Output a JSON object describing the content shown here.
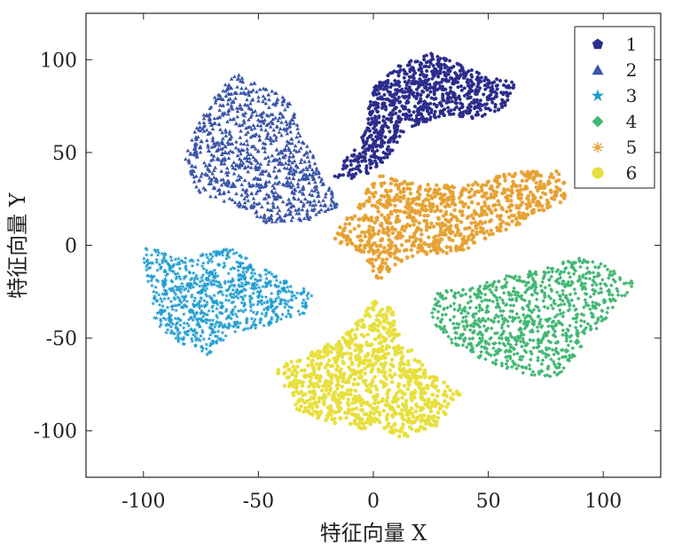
{
  "chart_data": {
    "type": "scatter",
    "title": "",
    "xlabel": "特征向量 X",
    "ylabel": "特征向量 Y",
    "xlim": [
      -125,
      125
    ],
    "ylim": [
      -125,
      125
    ],
    "xticks": [
      -100,
      -50,
      0,
      50,
      100
    ],
    "yticks": [
      -100,
      -50,
      0,
      50,
      100
    ],
    "xtick_labels": [
      "-100",
      "-50",
      "0",
      "50",
      "100"
    ],
    "ytick_labels": [
      "-100",
      "-50",
      "0",
      "50",
      "100"
    ],
    "grid": false,
    "legend_position": "top-right",
    "series": [
      {
        "name": "1",
        "color": "#2b2c8c",
        "marker": "pentagon",
        "cluster": {
          "polygon": [
            [
              -18,
              37
            ],
            [
              -5,
              57
            ],
            [
              0,
              85
            ],
            [
              12,
              98
            ],
            [
              25,
              104
            ],
            [
              38,
              97
            ],
            [
              52,
              90
            ],
            [
              62,
              88
            ],
            [
              58,
              74
            ],
            [
              45,
              68
            ],
            [
              30,
              70
            ],
            [
              14,
              62
            ],
            [
              5,
              45
            ],
            [
              -6,
              36
            ]
          ]
        }
      },
      {
        "name": "2",
        "color": "#3b55a8",
        "marker": "triangle",
        "cluster": {
          "polygon": [
            [
              -60,
              93
            ],
            [
              -48,
              85
            ],
            [
              -37,
              80
            ],
            [
              -32,
              64
            ],
            [
              -26,
              48
            ],
            [
              -22,
              36
            ],
            [
              -14,
              22
            ],
            [
              -28,
              14
            ],
            [
              -47,
              12
            ],
            [
              -56,
              20
            ],
            [
              -76,
              28
            ],
            [
              -83,
              40
            ],
            [
              -80,
              56
            ],
            [
              -72,
              75
            ]
          ]
        }
      },
      {
        "name": "3",
        "color": "#1f9ccf",
        "marker": "star",
        "cluster": {
          "polygon": [
            [
              -100,
              -1
            ],
            [
              -80,
              -7
            ],
            [
              -62,
              -1
            ],
            [
              -47,
              -13
            ],
            [
              -26,
              -26
            ],
            [
              -30,
              -37
            ],
            [
              -50,
              -45
            ],
            [
              -62,
              -47
            ],
            [
              -72,
              -59
            ],
            [
              -85,
              -52
            ],
            [
              -95,
              -43
            ],
            [
              -96,
              -28
            ],
            [
              -100,
              -12
            ]
          ]
        }
      },
      {
        "name": "4",
        "color": "#43b875",
        "marker": "diamond",
        "cluster": {
          "polygon": [
            [
              28,
              -25
            ],
            [
              44,
              -22
            ],
            [
              62,
              -15
            ],
            [
              77,
              -12
            ],
            [
              88,
              -6
            ],
            [
              100,
              -10
            ],
            [
              114,
              -20
            ],
            [
              104,
              -36
            ],
            [
              92,
              -52
            ],
            [
              80,
              -72
            ],
            [
              68,
              -70
            ],
            [
              54,
              -65
            ],
            [
              40,
              -58
            ],
            [
              28,
              -47
            ],
            [
              25,
              -37
            ]
          ]
        }
      },
      {
        "name": "5",
        "color": "#e6a233",
        "marker": "asterisk",
        "cluster": {
          "polygon": [
            [
              -18,
              5
            ],
            [
              -8,
              20
            ],
            [
              2,
              38
            ],
            [
              18,
              33
            ],
            [
              40,
              32
            ],
            [
              60,
              40
            ],
            [
              82,
              40
            ],
            [
              85,
              26
            ],
            [
              65,
              12
            ],
            [
              50,
              4
            ],
            [
              38,
              -4
            ],
            [
              20,
              -5
            ],
            [
              10,
              -10
            ],
            [
              2,
              -20
            ],
            [
              -4,
              -5
            ],
            [
              -14,
              0
            ]
          ]
        }
      },
      {
        "name": "6",
        "color": "#e7e03e",
        "marker": "circle",
        "cluster": {
          "polygon": [
            [
              -43,
              -67
            ],
            [
              -28,
              -58
            ],
            [
              -14,
              -50
            ],
            [
              -5,
              -38
            ],
            [
              0,
              -30
            ],
            [
              9,
              -35
            ],
            [
              11,
              -48
            ],
            [
              24,
              -68
            ],
            [
              38,
              -80
            ],
            [
              28,
              -98
            ],
            [
              14,
              -104
            ],
            [
              0,
              -100
            ],
            [
              -18,
              -96
            ],
            [
              -33,
              -90
            ]
          ]
        }
      }
    ]
  },
  "legend": {
    "items": [
      {
        "label": "1",
        "color": "#2b2c8c",
        "marker": "pentagon"
      },
      {
        "label": "2",
        "color": "#3b55a8",
        "marker": "triangle"
      },
      {
        "label": "3",
        "color": "#1f9ccf",
        "marker": "star"
      },
      {
        "label": "4",
        "color": "#43b875",
        "marker": "diamond"
      },
      {
        "label": "5",
        "color": "#e6a233",
        "marker": "asterisk"
      },
      {
        "label": "6",
        "color": "#e7e03e",
        "marker": "circle"
      }
    ]
  }
}
